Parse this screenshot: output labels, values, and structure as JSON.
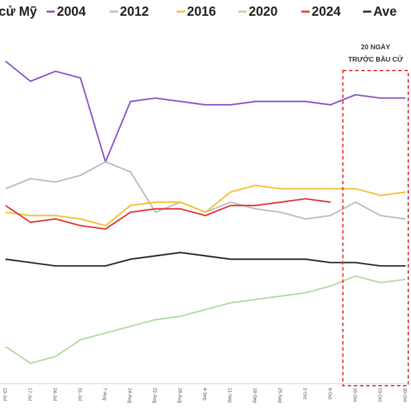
{
  "chart_data": {
    "type": "line",
    "title_fragment": "cử Mỹ",
    "x": [
      "13-Jul",
      "17-Jul",
      "24-Jul",
      "31-Jul",
      "7-Aug",
      "14-Aug",
      "21-Aug",
      "28-Aug",
      "4-Sep",
      "11-Sep",
      "18-Sep",
      "25-Sep",
      "2-Oct",
      "9-Oct",
      "16-Oct",
      "23-Oct",
      "30-Oct"
    ],
    "series": [
      {
        "name": "2004",
        "color": "#8e55c9",
        "values": [
          93,
          87,
          90,
          88,
          63,
          81,
          82,
          81,
          80,
          80,
          81,
          81,
          81,
          80,
          83,
          82,
          82
        ]
      },
      {
        "name": "2012",
        "color": "#bdbdbd",
        "values": [
          55,
          58,
          57,
          59,
          63,
          60,
          48,
          51,
          48,
          51,
          49,
          48,
          46,
          47,
          51,
          47,
          46
        ]
      },
      {
        "name": "2016",
        "color": "#f2c233",
        "values": [
          48,
          47,
          47,
          46,
          44,
          50,
          51,
          51,
          48,
          54,
          56,
          55,
          55,
          55,
          55,
          53,
          54
        ]
      },
      {
        "name": "2020",
        "color": "#b5d9a6",
        "values": [
          8,
          3,
          5,
          10,
          12,
          14,
          16,
          17,
          19,
          21,
          22,
          23,
          24,
          26,
          29,
          27,
          28
        ]
      },
      {
        "name": "2024",
        "color": "#e23b3b",
        "values": [
          50,
          45,
          46,
          44,
          43,
          48,
          49,
          49,
          47,
          50,
          50,
          51,
          52,
          51,
          null,
          null,
          null
        ]
      },
      {
        "name": "Ave",
        "color": "#2b2b2b",
        "values": [
          34,
          33,
          32,
          32,
          32,
          34,
          35,
          36,
          35,
          34,
          34,
          34,
          34,
          33,
          33,
          32,
          32
        ]
      }
    ],
    "ylim": [
      0,
      100
    ],
    "grid": false,
    "legend_position": "top",
    "annotation": {
      "line1": "20 NGÀY",
      "line2": "TRƯỚC BẦU CỬ",
      "from_index": 13,
      "to_index": 16
    }
  }
}
